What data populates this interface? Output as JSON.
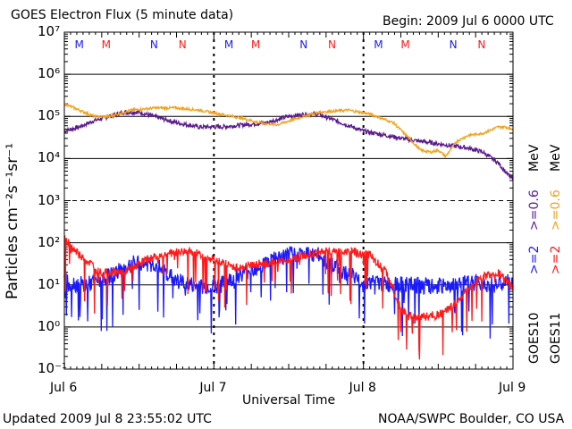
{
  "header": {
    "title": "GOES Electron Flux (5 minute data)",
    "begin": "Begin: 2009 Jul 6 0000 UTC"
  },
  "footer": {
    "updated": "Updated 2009 Jul  8 23:55:02 UTC",
    "source": "NOAA/SWPC Boulder, CO USA"
  },
  "colors": {
    "blue": "#1a1aff",
    "red": "#ff1a1a",
    "orange": "#f0a21e",
    "purple": "#5b1a8c",
    "black": "#000000"
  },
  "chart_data": {
    "type": "line",
    "title": "GOES Electron Flux (5 minute data)",
    "xlabel": "Universal Time",
    "ylabel": "Particles cm⁻²s⁻¹sr⁻¹",
    "yscale": "log",
    "ylim_exp": [
      -1,
      7
    ],
    "y_tick_labels": [
      "10⁻¹",
      "10⁰",
      "10¹",
      "10²",
      "10³",
      "10⁴",
      "10⁵",
      "10⁶",
      "10⁷"
    ],
    "x_ticks": [
      "Jul 6",
      "Jul 7",
      "Jul 8",
      "Jul 9"
    ],
    "xlim_days": [
      0,
      3
    ],
    "mn_markers": [
      {
        "label": "M",
        "day": 0.1,
        "color": "blue"
      },
      {
        "label": "M",
        "day": 0.28,
        "color": "red"
      },
      {
        "label": "N",
        "day": 0.6,
        "color": "blue"
      },
      {
        "label": "N",
        "day": 0.79,
        "color": "red"
      },
      {
        "label": "M",
        "day": 1.1,
        "color": "blue"
      },
      {
        "label": "M",
        "day": 1.28,
        "color": "red"
      },
      {
        "label": "N",
        "day": 1.6,
        "color": "blue"
      },
      {
        "label": "N",
        "day": 1.79,
        "color": "red"
      },
      {
        "label": "M",
        "day": 2.1,
        "color": "blue"
      },
      {
        "label": "M",
        "day": 2.28,
        "color": "red"
      },
      {
        "label": "N",
        "day": 2.6,
        "color": "blue"
      },
      {
        "label": "N",
        "day": 2.79,
        "color": "red"
      }
    ],
    "legend": {
      "goes10": "GOES10",
      "goes11": "GOES11",
      "blue_label": ">=2",
      "purple_label": ">=0.6",
      "red_label": ">=2",
      "orange_label": ">=0.6",
      "unit": "MeV"
    },
    "series": [
      {
        "name": "GOES10 >=0.6 MeV",
        "color": "purple",
        "noise": 0.05,
        "spikes": false,
        "points": [
          [
            0,
            4.65
          ],
          [
            0.1,
            4.75
          ],
          [
            0.2,
            4.9
          ],
          [
            0.3,
            5.0
          ],
          [
            0.4,
            5.1
          ],
          [
            0.5,
            5.1
          ],
          [
            0.6,
            5.0
          ],
          [
            0.75,
            4.85
          ],
          [
            0.9,
            4.75
          ],
          [
            1.05,
            4.75
          ],
          [
            1.2,
            4.8
          ],
          [
            1.35,
            4.85
          ],
          [
            1.5,
            5.0
          ],
          [
            1.6,
            5.05
          ],
          [
            1.7,
            5.05
          ],
          [
            1.85,
            4.85
          ],
          [
            2.0,
            4.65
          ],
          [
            2.15,
            4.55
          ],
          [
            2.3,
            4.45
          ],
          [
            2.5,
            4.35
          ],
          [
            2.7,
            4.25
          ],
          [
            2.8,
            4.15
          ],
          [
            2.9,
            3.9
          ],
          [
            2.97,
            3.6
          ],
          [
            3.0,
            3.5
          ]
        ]
      },
      {
        "name": "GOES11 >=0.6 MeV",
        "color": "orange",
        "noise": 0.03,
        "spikes": false,
        "points": [
          [
            0,
            5.3
          ],
          [
            0.1,
            5.15
          ],
          [
            0.2,
            5.0
          ],
          [
            0.3,
            5.0
          ],
          [
            0.45,
            5.15
          ],
          [
            0.6,
            5.2
          ],
          [
            0.75,
            5.2
          ],
          [
            0.9,
            5.15
          ],
          [
            1.05,
            5.05
          ],
          [
            1.2,
            4.95
          ],
          [
            1.3,
            4.85
          ],
          [
            1.42,
            4.8
          ],
          [
            1.55,
            4.95
          ],
          [
            1.7,
            5.1
          ],
          [
            1.9,
            5.15
          ],
          [
            2.05,
            5.05
          ],
          [
            2.2,
            4.85
          ],
          [
            2.3,
            4.5
          ],
          [
            2.38,
            4.2
          ],
          [
            2.45,
            4.15
          ],
          [
            2.5,
            4.2
          ],
          [
            2.55,
            4.05
          ],
          [
            2.62,
            4.4
          ],
          [
            2.7,
            4.55
          ],
          [
            2.8,
            4.6
          ],
          [
            2.9,
            4.75
          ],
          [
            2.95,
            4.75
          ],
          [
            3.0,
            4.7
          ]
        ]
      },
      {
        "name": "GOES10 >=2 MeV",
        "color": "blue",
        "noise": 0.2,
        "spikes": true,
        "points": [
          [
            0,
            1.05
          ],
          [
            0.15,
            1.0
          ],
          [
            0.3,
            1.2
          ],
          [
            0.45,
            1.5
          ],
          [
            0.6,
            1.5
          ],
          [
            0.75,
            1.1
          ],
          [
            0.9,
            0.95
          ],
          [
            1.05,
            1.0
          ],
          [
            1.2,
            1.3
          ],
          [
            1.4,
            1.6
          ],
          [
            1.55,
            1.75
          ],
          [
            1.7,
            1.7
          ],
          [
            1.85,
            1.35
          ],
          [
            2.0,
            1.1
          ],
          [
            2.15,
            1.0
          ],
          [
            2.3,
            1.0
          ],
          [
            2.45,
            0.95
          ],
          [
            2.6,
            1.0
          ],
          [
            2.75,
            1.05
          ],
          [
            2.9,
            1.0
          ],
          [
            3.0,
            1.1
          ]
        ]
      },
      {
        "name": "GOES11 >=2 MeV",
        "color": "red",
        "noise": 0.1,
        "spikes": true,
        "points": [
          [
            0,
            2.1
          ],
          [
            0.1,
            1.7
          ],
          [
            0.25,
            1.3
          ],
          [
            0.4,
            1.3
          ],
          [
            0.55,
            1.6
          ],
          [
            0.7,
            1.75
          ],
          [
            0.85,
            1.8
          ],
          [
            1.0,
            1.6
          ],
          [
            1.15,
            1.4
          ],
          [
            1.3,
            1.5
          ],
          [
            1.45,
            1.55
          ],
          [
            1.6,
            1.7
          ],
          [
            1.75,
            1.8
          ],
          [
            1.9,
            1.8
          ],
          [
            2.05,
            1.7
          ],
          [
            2.15,
            1.3
          ],
          [
            2.2,
            0.9
          ],
          [
            2.25,
            0.4
          ],
          [
            2.35,
            0.2
          ],
          [
            2.5,
            0.3
          ],
          [
            2.6,
            0.5
          ],
          [
            2.7,
            0.9
          ],
          [
            2.8,
            1.2
          ],
          [
            2.9,
            1.3
          ],
          [
            3.0,
            0.9
          ]
        ]
      }
    ]
  }
}
